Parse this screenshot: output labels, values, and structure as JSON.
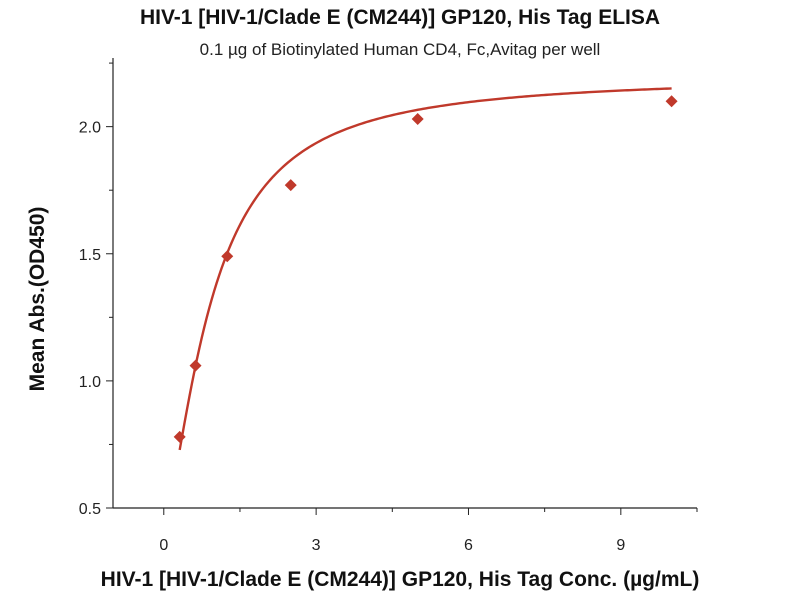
{
  "chart_data": {
    "type": "scatter",
    "title": "HIV-1 [HIV-1/Clade E (CM244)] GP120, His Tag ELISA",
    "subtitle": "0.1 µg of Biotinylated Human CD4, Fc,Avitag per well",
    "xlabel": "HIV-1 [HIV-1/Clade E (CM244)] GP120, His Tag Conc. (µg/mL)",
    "ylabel": "Mean Abs.(OD450)",
    "xlim": [
      -1,
      10.5
    ],
    "ylim": [
      0.5,
      2.27
    ],
    "xticks": [
      0,
      3,
      6,
      9
    ],
    "yticks": [
      0.5,
      1.0,
      1.5,
      2.0
    ],
    "xtick_labels": [
      "0",
      "3",
      "6",
      "9"
    ],
    "ytick_labels": [
      "0.5",
      "1.0",
      "1.5",
      "2.0"
    ],
    "grid": false,
    "series": [
      {
        "marker": "diamond",
        "color": "#c0392b",
        "x": [
          0.313,
          0.625,
          1.25,
          2.5,
          5,
          10
        ],
        "y": [
          0.78,
          1.06,
          1.49,
          1.77,
          2.03,
          2.1
        ]
      }
    ],
    "fit_curve": {
      "color": "#c0392b",
      "model": "4PL",
      "bottom": 0.45,
      "top": 2.2,
      "ec50": 0.95,
      "hill": 1.5
    }
  }
}
